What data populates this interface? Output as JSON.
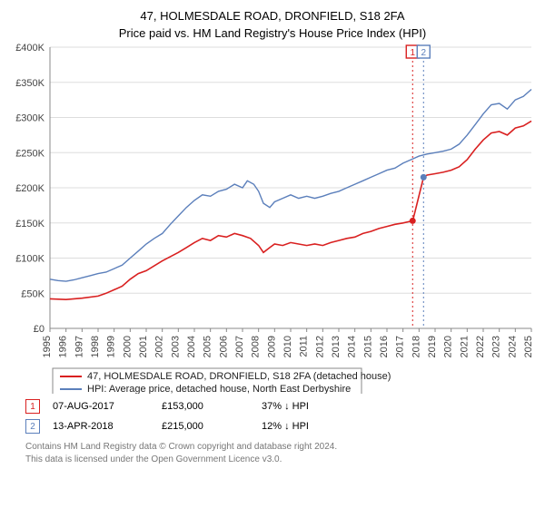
{
  "title_line1": "47, HOLMESDALE ROAD, DRONFIELD, S18 2FA",
  "title_line2": "Price paid vs. HM Land Registry's House Price Index (HPI)",
  "chart": {
    "background_color": "#ffffff",
    "grid_color": "#dddddd",
    "axis_color": "#888888",
    "xlim": [
      1995,
      2025
    ],
    "ylim": [
      0,
      400000
    ],
    "ytick_step": 50000,
    "ytick_labels": [
      "£0",
      "£50K",
      "£100K",
      "£150K",
      "£200K",
      "£250K",
      "£300K",
      "£350K",
      "£400K"
    ],
    "xticks": [
      1995,
      1996,
      1997,
      1998,
      1999,
      2000,
      2001,
      2002,
      2003,
      2004,
      2005,
      2006,
      2007,
      2008,
      2009,
      2010,
      2011,
      2012,
      2013,
      2014,
      2015,
      2016,
      2017,
      2018,
      2019,
      2020,
      2021,
      2022,
      2023,
      2024,
      2025
    ],
    "series": {
      "red": {
        "color": "#d92020",
        "label": "47, HOLMESDALE ROAD, DRONFIELD, S18 2FA (detached house)",
        "data": [
          [
            1995.0,
            42000
          ],
          [
            1996.0,
            41000
          ],
          [
            1997.0,
            43000
          ],
          [
            1998.0,
            46000
          ],
          [
            1998.5,
            50000
          ],
          [
            1999.0,
            55000
          ],
          [
            1999.5,
            60000
          ],
          [
            2000.0,
            70000
          ],
          [
            2000.5,
            78000
          ],
          [
            2001.0,
            82000
          ],
          [
            2002.0,
            96000
          ],
          [
            2003.0,
            108000
          ],
          [
            2003.5,
            115000
          ],
          [
            2004.0,
            122000
          ],
          [
            2004.5,
            128000
          ],
          [
            2005.0,
            125000
          ],
          [
            2005.5,
            132000
          ],
          [
            2006.0,
            130000
          ],
          [
            2006.5,
            135000
          ],
          [
            2007.0,
            132000
          ],
          [
            2007.5,
            128000
          ],
          [
            2008.0,
            118000
          ],
          [
            2008.3,
            108000
          ],
          [
            2008.7,
            115000
          ],
          [
            2009.0,
            120000
          ],
          [
            2009.5,
            118000
          ],
          [
            2010.0,
            122000
          ],
          [
            2010.5,
            120000
          ],
          [
            2011.0,
            118000
          ],
          [
            2011.5,
            120000
          ],
          [
            2012.0,
            118000
          ],
          [
            2012.5,
            122000
          ],
          [
            2013.0,
            125000
          ],
          [
            2013.5,
            128000
          ],
          [
            2014.0,
            130000
          ],
          [
            2014.5,
            135000
          ],
          [
            2015.0,
            138000
          ],
          [
            2015.5,
            142000
          ],
          [
            2016.0,
            145000
          ],
          [
            2016.5,
            148000
          ],
          [
            2017.0,
            150000
          ],
          [
            2017.6,
            153000
          ],
          [
            2017.61,
            153000
          ],
          [
            2018.28,
            215000
          ],
          [
            2018.5,
            218000
          ],
          [
            2019.0,
            220000
          ],
          [
            2019.5,
            222000
          ],
          [
            2020.0,
            225000
          ],
          [
            2020.5,
            230000
          ],
          [
            2021.0,
            240000
          ],
          [
            2021.5,
            255000
          ],
          [
            2022.0,
            268000
          ],
          [
            2022.5,
            278000
          ],
          [
            2023.0,
            280000
          ],
          [
            2023.5,
            275000
          ],
          [
            2024.0,
            285000
          ],
          [
            2024.5,
            288000
          ],
          [
            2025.0,
            295000
          ]
        ]
      },
      "blue": {
        "color": "#5b7fbb",
        "label": "HPI: Average price, detached house, North East Derbyshire",
        "data": [
          [
            1995.0,
            70000
          ],
          [
            1995.5,
            68000
          ],
          [
            1996.0,
            67000
          ],
          [
            1996.5,
            69000
          ],
          [
            1997.0,
            72000
          ],
          [
            1997.5,
            75000
          ],
          [
            1998.0,
            78000
          ],
          [
            1998.5,
            80000
          ],
          [
            1999.0,
            85000
          ],
          [
            1999.5,
            90000
          ],
          [
            2000.0,
            100000
          ],
          [
            2000.5,
            110000
          ],
          [
            2001.0,
            120000
          ],
          [
            2001.5,
            128000
          ],
          [
            2002.0,
            135000
          ],
          [
            2002.5,
            148000
          ],
          [
            2003.0,
            160000
          ],
          [
            2003.5,
            172000
          ],
          [
            2004.0,
            182000
          ],
          [
            2004.5,
            190000
          ],
          [
            2005.0,
            188000
          ],
          [
            2005.5,
            195000
          ],
          [
            2006.0,
            198000
          ],
          [
            2006.5,
            205000
          ],
          [
            2007.0,
            200000
          ],
          [
            2007.3,
            210000
          ],
          [
            2007.7,
            205000
          ],
          [
            2008.0,
            195000
          ],
          [
            2008.3,
            178000
          ],
          [
            2008.7,
            172000
          ],
          [
            2009.0,
            180000
          ],
          [
            2009.5,
            185000
          ],
          [
            2010.0,
            190000
          ],
          [
            2010.5,
            185000
          ],
          [
            2011.0,
            188000
          ],
          [
            2011.5,
            185000
          ],
          [
            2012.0,
            188000
          ],
          [
            2012.5,
            192000
          ],
          [
            2013.0,
            195000
          ],
          [
            2013.5,
            200000
          ],
          [
            2014.0,
            205000
          ],
          [
            2014.5,
            210000
          ],
          [
            2015.0,
            215000
          ],
          [
            2015.5,
            220000
          ],
          [
            2016.0,
            225000
          ],
          [
            2016.5,
            228000
          ],
          [
            2017.0,
            235000
          ],
          [
            2017.5,
            240000
          ],
          [
            2018.0,
            245000
          ],
          [
            2018.5,
            248000
          ],
          [
            2019.0,
            250000
          ],
          [
            2019.5,
            252000
          ],
          [
            2020.0,
            255000
          ],
          [
            2020.5,
            262000
          ],
          [
            2021.0,
            275000
          ],
          [
            2021.5,
            290000
          ],
          [
            2022.0,
            305000
          ],
          [
            2022.5,
            318000
          ],
          [
            2023.0,
            320000
          ],
          [
            2023.5,
            312000
          ],
          [
            2024.0,
            325000
          ],
          [
            2024.5,
            330000
          ],
          [
            2025.0,
            340000
          ]
        ]
      }
    },
    "sale_markers": [
      {
        "n": "1",
        "year": 2017.6,
        "price": 153000,
        "color": "#d92020"
      },
      {
        "n": "2",
        "year": 2018.28,
        "price": 215000,
        "color": "#5b7fbb"
      }
    ]
  },
  "sales": [
    {
      "n": "1",
      "color": "#d92020",
      "date": "07-AUG-2017",
      "price": "£153,000",
      "pct": "37%  ↓ HPI"
    },
    {
      "n": "2",
      "color": "#5b7fbb",
      "date": "13-APR-2018",
      "price": "£215,000",
      "pct": "12%  ↓ HPI"
    }
  ],
  "footer_line1": "Contains HM Land Registry data © Crown copyright and database right 2024.",
  "footer_line2": "This data is licensed under the Open Government Licence v3.0."
}
